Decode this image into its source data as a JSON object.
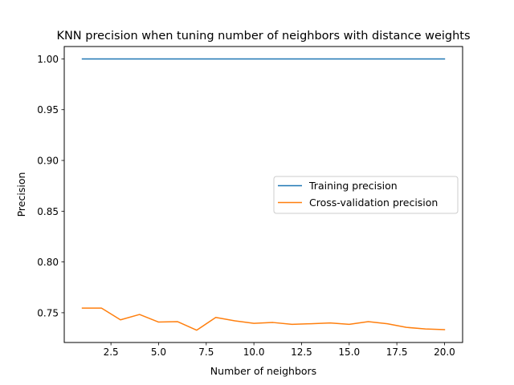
{
  "chart_data": {
    "type": "line",
    "title": "KNN precision when tuning number of neighbors with distance weights",
    "xlabel": "Number of neighbors",
    "ylabel": "Precision",
    "xlim": [
      0.05,
      20.95
    ],
    "ylim": [
      0.7207,
      1.0122
    ],
    "x_ticks": [
      2.5,
      5.0,
      7.5,
      10.0,
      12.5,
      15.0,
      17.5,
      20.0
    ],
    "x_tick_labels": [
      "2.5",
      "5.0",
      "7.5",
      "10.0",
      "12.5",
      "15.0",
      "17.5",
      "20.0"
    ],
    "y_ticks": [
      0.75,
      0.8,
      0.85,
      0.9,
      0.95,
      1.0
    ],
    "y_tick_labels": [
      "0.75",
      "0.80",
      "0.85",
      "0.90",
      "0.95",
      "1.00"
    ],
    "grid": false,
    "legend_position": "center-right",
    "x": [
      1,
      2,
      3,
      4,
      5,
      6,
      7,
      8,
      9,
      10,
      11,
      12,
      13,
      14,
      15,
      16,
      17,
      18,
      19,
      20
    ],
    "series": [
      {
        "name": "Training precision",
        "color": "#1f77b4",
        "values": [
          1.0,
          1.0,
          1.0,
          1.0,
          1.0,
          1.0,
          1.0,
          1.0,
          1.0,
          1.0,
          1.0,
          1.0,
          1.0,
          1.0,
          1.0,
          1.0,
          1.0,
          1.0,
          1.0,
          1.0
        ]
      },
      {
        "name": "Cross-validation precision",
        "color": "#ff7f0e",
        "values": [
          0.7546,
          0.7546,
          0.743,
          0.7483,
          0.7408,
          0.7412,
          0.7328,
          0.7454,
          0.742,
          0.7396,
          0.7404,
          0.7386,
          0.7392,
          0.74,
          0.7386,
          0.7412,
          0.7392,
          0.7356,
          0.734,
          0.7334
        ]
      }
    ]
  }
}
